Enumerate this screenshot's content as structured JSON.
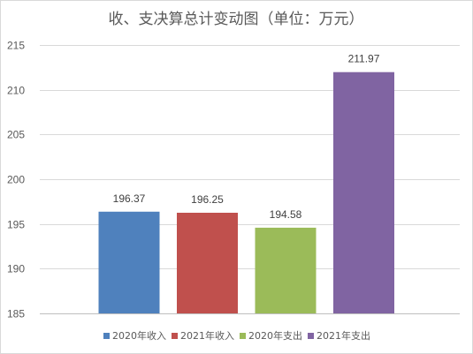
{
  "chart_data": {
    "type": "bar",
    "title": "收、支决算总计变动图（单位：万元）",
    "categories": [
      "2020年收入",
      "2021年收入",
      "2020年支出",
      "2021年支出"
    ],
    "values": [
      196.37,
      196.25,
      194.58,
      211.97
    ],
    "value_labels": [
      "196.37",
      "196.25",
      "194.58",
      "211.97"
    ],
    "colors": [
      "#4F81BD",
      "#C0504D",
      "#9BBB59",
      "#8064A2"
    ],
    "ylim": [
      185,
      215
    ],
    "yticks": [
      185,
      190,
      195,
      200,
      205,
      210,
      215
    ],
    "ytick_labels": [
      "185",
      "190",
      "195",
      "200",
      "205",
      "210",
      "215"
    ],
    "grid": true,
    "legend": {
      "position": "bottom",
      "entries": [
        "2020年收入",
        "2021年收入",
        "2020年支出",
        "2021年支出"
      ]
    }
  }
}
